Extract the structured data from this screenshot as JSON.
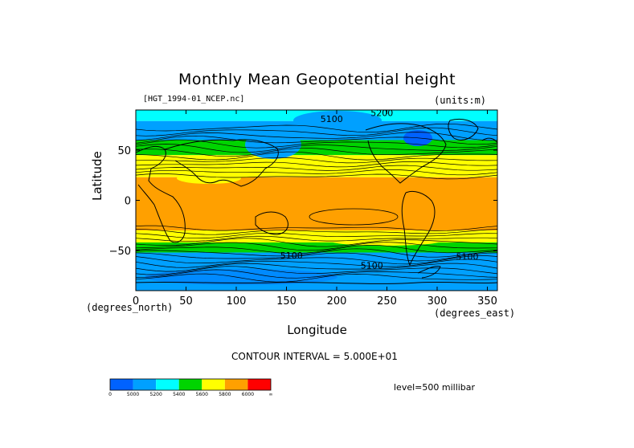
{
  "chart_data": {
    "type": "contour-map",
    "title": "Monthly Mean Geopotential height",
    "dataset": "[HGT_1994-01_NCEP.nc]",
    "units": "(units:m)",
    "xlabel": "Longitude",
    "ylabel": "Latitude",
    "x_units": "(degrees_east)",
    "y_units": "(degrees_north)",
    "xlim": [
      0,
      360
    ],
    "ylim": [
      -90,
      90
    ],
    "x_ticks": [
      "0",
      "50",
      "100",
      "150",
      "200",
      "250",
      "300",
      "350"
    ],
    "y_ticks": [
      "50",
      "0",
      "−50"
    ],
    "contour_interval": "CONTOUR INTERVAL = 5.000E+01",
    "level": "level=500 millibar",
    "contour_labels": [
      "5200",
      "5100",
      "5100",
      "5100",
      "5100"
    ],
    "colorbar": {
      "colors": [
        "#0062ff",
        "#00a0ff",
        "#00ffff",
        "#00d400",
        "#ffff00",
        "#ffa000",
        "#ff0000"
      ],
      "labels": [
        "0",
        "5000",
        "5200",
        "5400",
        "5600",
        "5800",
        "6000",
        "∞"
      ]
    },
    "bands": [
      {
        "lat_top": 90,
        "lat_bottom": 79,
        "color": "#00ffff"
      },
      {
        "lat_top": 79,
        "lat_bottom": 60,
        "color": "#00a0ff"
      },
      {
        "lat_top": 60,
        "lat_bottom": 45,
        "color": "#00d400"
      },
      {
        "lat_top": 45,
        "lat_bottom": 23,
        "color": "#ffff00"
      },
      {
        "lat_top": 23,
        "lat_bottom": -30,
        "color": "#ffa000"
      },
      {
        "lat_top": -30,
        "lat_bottom": -42,
        "color": "#ffff00"
      },
      {
        "lat_top": -42,
        "lat_bottom": -52,
        "color": "#00d400"
      },
      {
        "lat_top": -52,
        "lat_bottom": -90,
        "color": "#00a0ff"
      }
    ]
  }
}
